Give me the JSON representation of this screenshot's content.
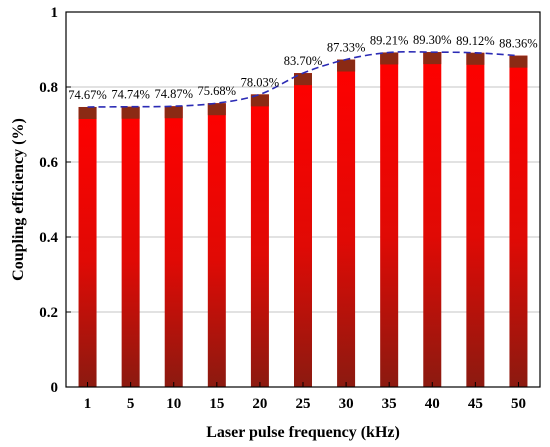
{
  "chart_data": {
    "type": "bar",
    "categories": [
      "1",
      "5",
      "10",
      "15",
      "20",
      "25",
      "30",
      "35",
      "40",
      "45",
      "50"
    ],
    "values": [
      0.7467,
      0.7474,
      0.7487,
      0.7568,
      0.7803,
      0.837,
      0.8733,
      0.8921,
      0.893,
      0.8912,
      0.8836
    ],
    "data_labels": [
      "74.67%",
      "74.74%",
      "74.87%",
      "75.68%",
      "78.03%",
      "83.70%",
      "87.33%",
      "89.21%",
      "89.30%",
      "89.12%",
      "88.36%"
    ],
    "xlabel": "Laser pulse frequency (kHz)",
    "ylabel": "Coupling efficiency (%)",
    "ylim": [
      0,
      1
    ],
    "yticks": [
      "0",
      "0.2",
      "0.4",
      "0.6",
      "0.8",
      "1"
    ],
    "grid": true,
    "trend_line": "dashed",
    "colors": {
      "bar_top": "#ff0000",
      "bar_bottom": "#8b1a10",
      "bar_cap": "#8b2a14",
      "trend": "#2b2bb5",
      "grid": "#b0b0b0"
    }
  }
}
